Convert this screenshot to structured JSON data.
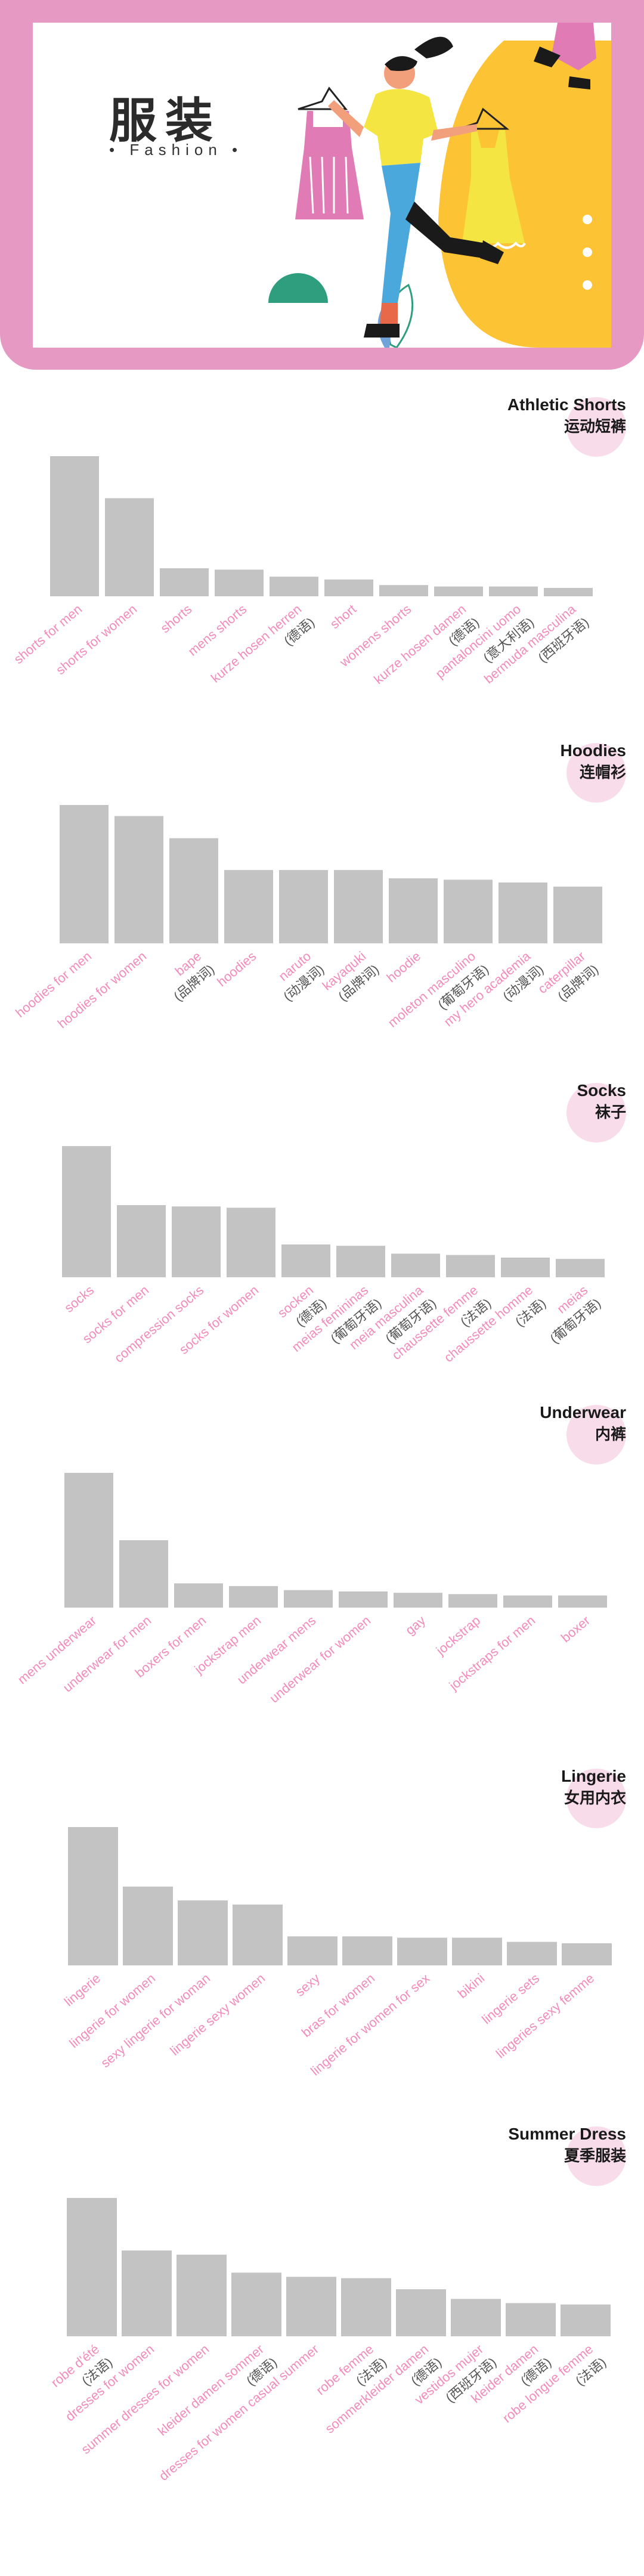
{
  "banner": {
    "title_cn": "服装",
    "title_en": "• Fashion •",
    "colors": {
      "frame": "#e699c3",
      "accent_yellow": "#fcc335",
      "accent_pink": "#e07bb5"
    }
  },
  "chart_data": [
    {
      "type": "bar",
      "title": "Athletic Shorts",
      "subtitle": "运动短裤",
      "categories": [
        "shorts for men",
        "shorts for women",
        "shorts",
        "mens shorts",
        "kurze hosen herren",
        "short",
        "womens shorts",
        "kurze hosen damen",
        "pantaloncini uomo",
        "bermuda masculina"
      ],
      "annotations": [
        "",
        "",
        "",
        "",
        "(德语)",
        "",
        "",
        "(德语)",
        "(意大利语)",
        "(西班牙语)"
      ],
      "values": [
        100,
        70,
        20,
        19,
        14,
        12,
        8,
        7,
        7,
        6
      ],
      "ylim": [
        0,
        100
      ]
    },
    {
      "type": "bar",
      "title": "Hoodies",
      "subtitle": "连帽衫",
      "categories": [
        "hoodies for men",
        "hoodies for women",
        "bape",
        "hoodies",
        "naruto",
        "kayaquki",
        "hoodie",
        "moleton masculino",
        "my hero academia",
        "caterpillar"
      ],
      "annotations": [
        "",
        "",
        "(品牌词)",
        "",
        "(动漫词)",
        "(品牌词)",
        "",
        "(葡萄牙语)",
        "(动漫词)",
        "(品牌词)"
      ],
      "values": [
        100,
        92,
        76,
        53,
        53,
        53,
        47,
        46,
        44,
        41
      ],
      "ylim": [
        0,
        100
      ]
    },
    {
      "type": "bar",
      "title": "Socks",
      "subtitle": "袜子",
      "categories": [
        "socks",
        "socks for men",
        "compression socks",
        "socks for women",
        "socken",
        "meias femininas",
        "meia masculina",
        "chaussette femme",
        "chaussette homme",
        "meias"
      ],
      "annotations": [
        "",
        "",
        "",
        "",
        "(德语)",
        "(葡萄牙语)",
        "(葡萄牙语)",
        "(法语)",
        "(法语)",
        "(葡萄牙语)"
      ],
      "values": [
        100,
        55,
        54,
        53,
        25,
        24,
        18,
        17,
        15,
        14
      ],
      "ylim": [
        0,
        100
      ]
    },
    {
      "type": "bar",
      "title": "Underwear",
      "subtitle": "内裤",
      "categories": [
        "mens underwear",
        "underwear for men",
        "boxers for men",
        "jockstrap men",
        "underwear mens",
        "underwear for women",
        "gay",
        "jockstrap",
        "jockstraps for men",
        "boxer"
      ],
      "annotations": [
        "",
        "",
        "",
        "",
        "",
        "",
        "",
        "",
        "",
        ""
      ],
      "values": [
        100,
        50,
        18,
        16,
        13,
        12,
        11,
        10,
        9,
        9
      ],
      "ylim": [
        0,
        100
      ]
    },
    {
      "type": "bar",
      "title": "Lingerie",
      "subtitle": "女用内衣",
      "categories": [
        "lingerie",
        "lingerie for women",
        "sexy lingerie for woman",
        "lingerie sexy women",
        "sexy",
        "bras for women",
        "lingerie for women for sex",
        "bikini",
        "lingerie sets",
        "lingeries sexy femme"
      ],
      "annotations": [
        "",
        "",
        "",
        "",
        "",
        "",
        "",
        "",
        "",
        ""
      ],
      "values": [
        100,
        57,
        47,
        44,
        21,
        21,
        20,
        20,
        17,
        16
      ],
      "ylim": [
        0,
        100
      ]
    },
    {
      "type": "bar",
      "title": "Summer Dress",
      "subtitle": "夏季服装",
      "categories": [
        "robe d'été",
        "dresses for women",
        "summer dresses for women",
        "kleider damen sommer",
        "dresses for women casual summer",
        "robe femme",
        "sommerkleider damen",
        "vestidos mujer",
        "kleider damen",
        "robe longue femme"
      ],
      "annotations": [
        "(法语)",
        "",
        "",
        "(德语)",
        "",
        "(法语)",
        "(德语)",
        "(西班牙语)",
        "(德语)",
        "(法语)"
      ],
      "values": [
        100,
        62,
        59,
        46,
        43,
        42,
        34,
        27,
        24,
        23
      ],
      "ylim": [
        0,
        100
      ]
    }
  ]
}
